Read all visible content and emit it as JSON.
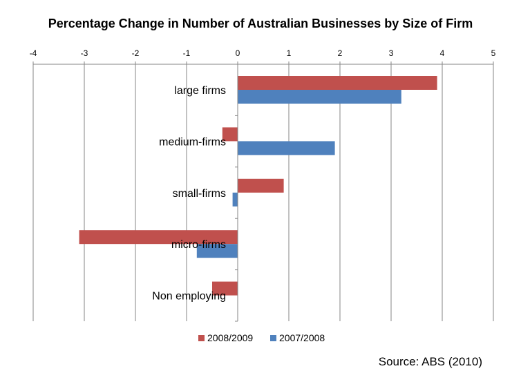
{
  "chart_data": {
    "type": "bar",
    "orientation": "horizontal",
    "title": "Percentage Change in Number of Australian Businesses by Size of Firm",
    "categories": [
      "large firms",
      "medium-firms",
      "small-firms",
      "micro-firms",
      "Non employing"
    ],
    "series": [
      {
        "name": "2008/2009",
        "color": "#c0504d",
        "values": [
          3.9,
          -0.3,
          0.9,
          -3.1,
          -0.5
        ]
      },
      {
        "name": "2007/2008",
        "color": "#4f81bd",
        "values": [
          3.2,
          1.9,
          -0.1,
          -0.8,
          0
        ]
      }
    ],
    "xlim": [
      -4,
      5
    ],
    "xticks": [
      -4,
      -3,
      -2,
      -1,
      0,
      1,
      2,
      3,
      4,
      5
    ],
    "xaxis_position": "top",
    "grid": "vertical",
    "legend": "bottom"
  },
  "source": "Source: ABS (2010)"
}
